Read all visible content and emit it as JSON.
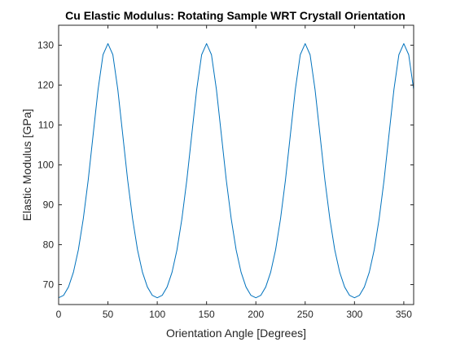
{
  "chart_data": {
    "type": "line",
    "title": "Cu Elastic Modulus: Rotating Sample WRT Crystall Orientation",
    "xlabel": "Orientation Angle [Degrees]",
    "ylabel": "Elastic Modulus [GPa]",
    "xlim": [
      0,
      360
    ],
    "ylim": [
      65,
      135
    ],
    "xticks": [
      0,
      50,
      100,
      150,
      200,
      250,
      300,
      350
    ],
    "yticks": [
      70,
      80,
      90,
      100,
      110,
      120,
      130
    ],
    "grid": false,
    "legend": "none",
    "series": [
      {
        "color": "#0072BD",
        "x": [
          0,
          5,
          10,
          15,
          20,
          25,
          30,
          35,
          40,
          45,
          50,
          55,
          60,
          65,
          70,
          75,
          80,
          85,
          90,
          95,
          100,
          105,
          110,
          115,
          120,
          125,
          130,
          135,
          140,
          145,
          150,
          155,
          160,
          165,
          170,
          175,
          180,
          185,
          190,
          195,
          200,
          205,
          210,
          215,
          220,
          225,
          230,
          235,
          240,
          245,
          250,
          255,
          260,
          265,
          270,
          275,
          280,
          285,
          290,
          295,
          300,
          305,
          310,
          315,
          320,
          325,
          330,
          335,
          340,
          345,
          350,
          355,
          360
        ],
        "y": [
          66.7,
          67.3,
          69.4,
          73.1,
          78.7,
          86.5,
          96.2,
          107.6,
          118.9,
          127.6,
          130.4,
          127.6,
          118.9,
          107.6,
          96.2,
          86.5,
          78.7,
          73.1,
          69.4,
          67.3,
          66.7,
          67.3,
          69.4,
          73.1,
          78.7,
          86.5,
          96.2,
          107.6,
          118.9,
          127.6,
          130.4,
          127.6,
          118.9,
          107.6,
          96.2,
          86.5,
          78.7,
          73.1,
          69.4,
          67.3,
          66.7,
          67.3,
          69.4,
          73.1,
          78.7,
          86.5,
          96.2,
          107.6,
          118.9,
          127.6,
          130.4,
          127.6,
          118.9,
          107.6,
          96.2,
          86.5,
          78.7,
          73.1,
          69.4,
          67.3,
          66.7,
          67.3,
          69.4,
          73.1,
          78.7,
          86.5,
          96.2,
          107.6,
          118.9,
          127.6,
          130.4,
          127.6,
          118.9
        ]
      }
    ]
  }
}
